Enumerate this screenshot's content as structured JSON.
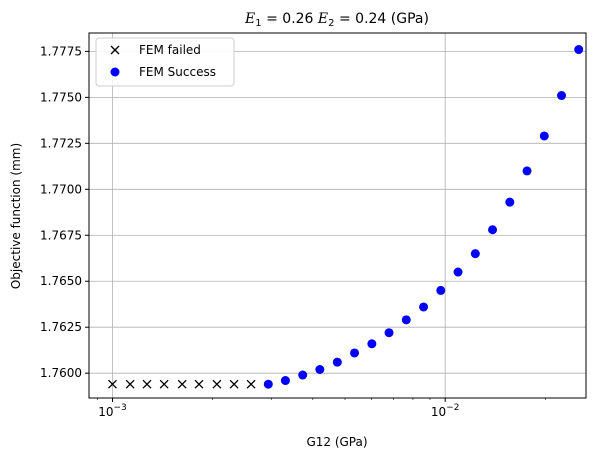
{
  "chart_data": {
    "type": "scatter",
    "title": {
      "e1_base": "E",
      "e1_sub": "1",
      "e1_rest": " = 0.26 ",
      "e2_base": "E",
      "e2_sub": "2",
      "e2_rest": " = 0.24 (GPa)"
    },
    "xlabel": "G12 (GPa)",
    "ylabel": "Objective function (mm)",
    "x_scale": "log",
    "xlim": [
      0.00085,
      0.0265
    ],
    "ylim": [
      1.75865,
      1.7785
    ],
    "grid": true,
    "legend_position": "upper-left",
    "x_ticks": [
      {
        "value": 0.001,
        "base": "10",
        "exp": "−3"
      },
      {
        "value": 0.01,
        "base": "10",
        "exp": "−2"
      }
    ],
    "y_ticks": [
      1.76,
      1.7625,
      1.765,
      1.7675,
      1.77,
      1.7725,
      1.775,
      1.7775
    ],
    "y_tick_labels": [
      "1.7600",
      "1.7625",
      "1.7650",
      "1.7675",
      "1.7700",
      "1.7725",
      "1.7750",
      "1.7775"
    ],
    "series": [
      {
        "name": "FEM failed",
        "marker": "x",
        "color": "#000000",
        "x": [
          0.001,
          0.00113,
          0.00127,
          0.00143,
          0.00162,
          0.00182,
          0.00206,
          0.00232,
          0.00261
        ],
        "y": [
          1.7594,
          1.7594,
          1.7594,
          1.7594,
          1.7594,
          1.7594,
          1.7594,
          1.7594,
          1.7594
        ]
      },
      {
        "name": "FEM Success",
        "marker": "o",
        "color": "#0000ff",
        "x": [
          0.00294,
          0.00331,
          0.00373,
          0.0042,
          0.00474,
          0.00534,
          0.00602,
          0.00678,
          0.00764,
          0.00861,
          0.0097,
          0.01093,
          0.01232,
          0.01388,
          0.01564,
          0.01762,
          0.01985,
          0.02237,
          0.0252
        ],
        "y": [
          1.7594,
          1.7596,
          1.7599,
          1.7602,
          1.7606,
          1.7611,
          1.7616,
          1.7622,
          1.7629,
          1.7636,
          1.7645,
          1.7655,
          1.7665,
          1.7678,
          1.7693,
          1.771,
          1.7729,
          1.7751,
          1.7776
        ]
      }
    ]
  }
}
